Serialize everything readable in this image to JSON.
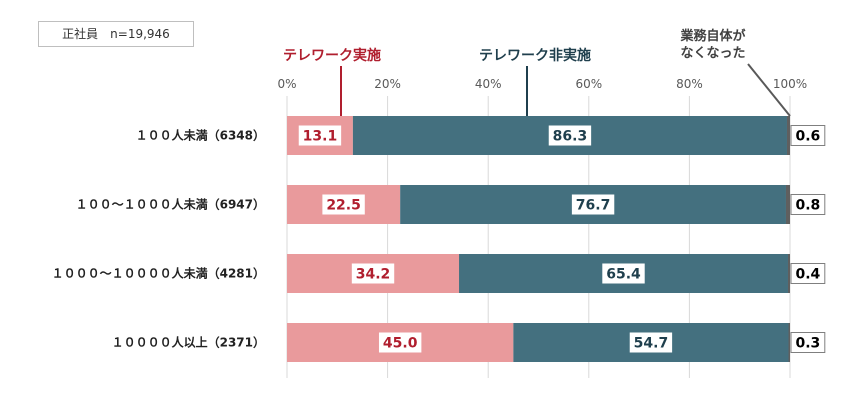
{
  "note": "正社員　n=19,946",
  "chart_data": {
    "type": "bar",
    "orientation": "horizontal",
    "stacked": true,
    "categories": [
      "１００人未満（6348）",
      "１００～１０００人未満（6947）",
      "１０００～１００００人未満（4281）",
      "１００００人以上（2371）"
    ],
    "series": [
      {
        "name": "テレワーク実施",
        "values": [
          13.1,
          22.5,
          34.2,
          45.0
        ],
        "labels": [
          "13.1",
          "22.5",
          "34.2",
          "45.0"
        ],
        "color": "#e99a9c",
        "label_color": "#b01e2e"
      },
      {
        "name": "テレワーク非実施",
        "values": [
          86.3,
          76.7,
          65.4,
          54.7
        ],
        "labels": [
          "86.3",
          "76.7",
          "65.4",
          "54.7"
        ],
        "color": "#44707f",
        "label_color": "#1f3f4d"
      },
      {
        "name": "業務自体がなくなった",
        "values": [
          0.6,
          0.8,
          0.4,
          0.3
        ],
        "labels": [
          "0.6",
          "0.8",
          "0.4",
          "0.3"
        ],
        "color": "#5f5f5f",
        "label_color": "#000000"
      }
    ],
    "xlim": [
      0,
      100
    ],
    "ticks": [
      "0%",
      "20%",
      "40%",
      "60%",
      "80%",
      "100%"
    ],
    "grid": true,
    "legend": "top, callout labels"
  }
}
